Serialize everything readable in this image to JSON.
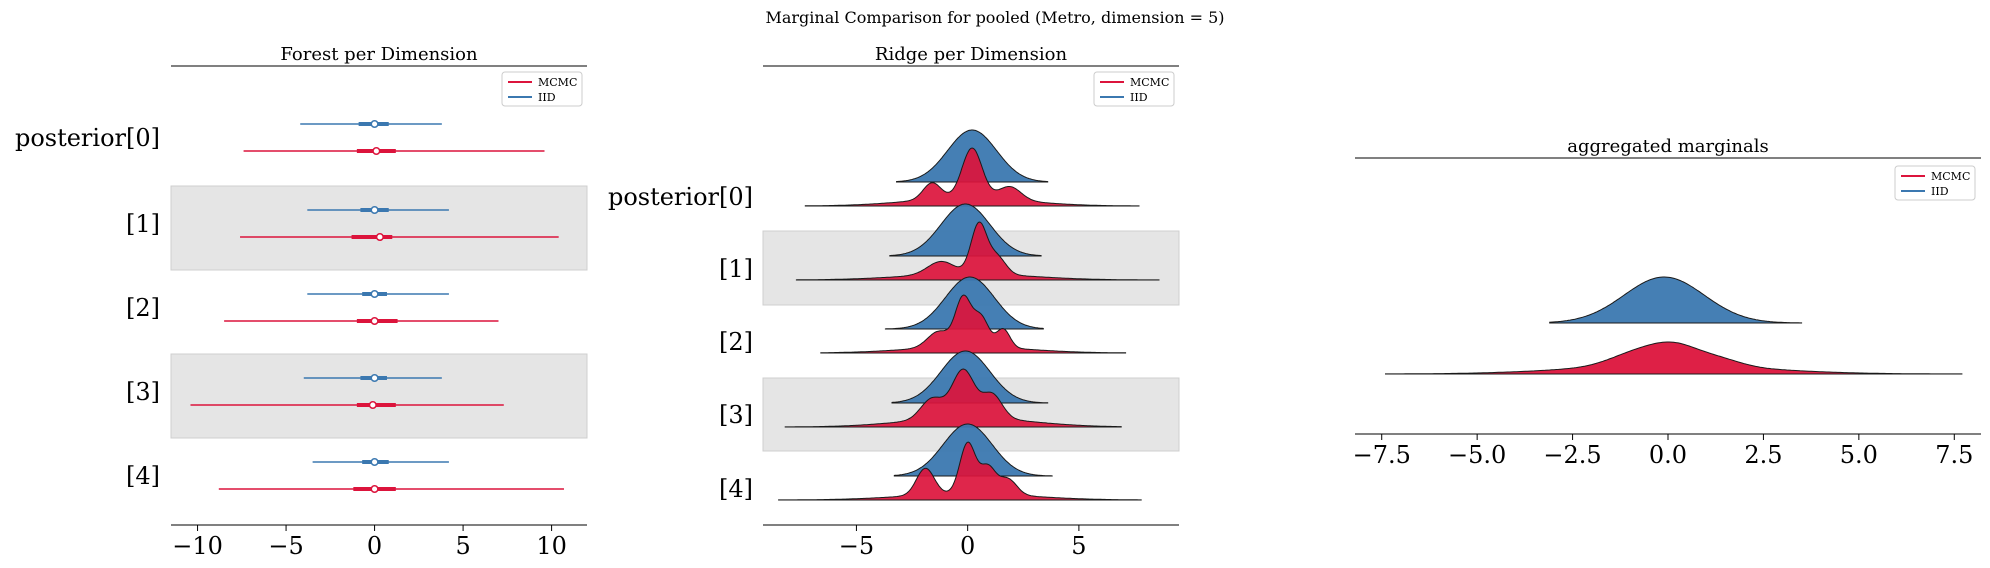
{
  "suptitle": "Marginal Comparison for pooled (Metro, dimension = 5)",
  "colors": {
    "mcmc": "#dc143c",
    "iid": "#3b78b0",
    "band": "#e5e5e5"
  },
  "chart_data": [
    {
      "type": "forest",
      "title": "Forest per Dimension",
      "xlim": [
        -11.5,
        12
      ],
      "xticks": [
        -10,
        -5,
        0,
        5,
        10
      ],
      "xtick_labels": [
        "−10",
        "−5",
        "0",
        "5",
        "10"
      ],
      "row_labels": [
        "posterior[0]",
        "[1]",
        "[2]",
        "[3]",
        "[4]"
      ],
      "legend": {
        "placement": "upper-right",
        "entries": [
          "MCMC",
          "IID"
        ]
      },
      "series": [
        {
          "name": "IID",
          "rows": [
            {
              "low": -4.2,
              "q1": -0.9,
              "median": 0.0,
              "q3": 0.8,
              "high": 3.8
            },
            {
              "low": -3.8,
              "q1": -0.8,
              "median": 0.0,
              "q3": 0.8,
              "high": 4.2
            },
            {
              "low": -3.8,
              "q1": -0.7,
              "median": 0.0,
              "q3": 0.7,
              "high": 4.2
            },
            {
              "low": -4.0,
              "q1": -0.8,
              "median": 0.0,
              "q3": 0.7,
              "high": 3.8
            },
            {
              "low": -3.5,
              "q1": -0.7,
              "median": 0.0,
              "q3": 0.8,
              "high": 4.2
            }
          ]
        },
        {
          "name": "MCMC",
          "rows": [
            {
              "low": -7.4,
              "q1": -1.0,
              "median": 0.1,
              "q3": 1.2,
              "high": 9.6
            },
            {
              "low": -7.6,
              "q1": -1.3,
              "median": 0.3,
              "q3": 1.0,
              "high": 10.4
            },
            {
              "low": -8.5,
              "q1": -1.0,
              "median": 0.0,
              "q3": 1.3,
              "high": 7.0
            },
            {
              "low": -10.4,
              "q1": -1.0,
              "median": -0.1,
              "q3": 1.2,
              "high": 7.3
            },
            {
              "low": -8.8,
              "q1": -1.2,
              "median": 0.0,
              "q3": 1.2,
              "high": 10.7
            }
          ]
        }
      ]
    },
    {
      "type": "ridgeline",
      "title": "Ridge per Dimension",
      "xlim": [
        -9.2,
        9.5
      ],
      "xticks": [
        -5,
        0,
        5
      ],
      "xtick_labels": [
        "−5",
        "0",
        "5"
      ],
      "row_labels": [
        "posterior[0]",
        "[1]",
        "[2]",
        "[3]",
        "[4]"
      ],
      "legend": {
        "placement": "upper-right",
        "entries": [
          "MCMC",
          "IID"
        ]
      },
      "series": [
        {
          "name": "IID",
          "rows": [
            {
              "min": -3.2,
              "max": 3.6,
              "peaks": [
                {
                  "mu": 0.2,
                  "sd": 1.1,
                  "h": 1.0
                }
              ]
            },
            {
              "min": -3.5,
              "max": 3.3,
              "peaks": [
                {
                  "mu": -0.1,
                  "sd": 1.1,
                  "h": 1.0
                }
              ]
            },
            {
              "min": -3.7,
              "max": 3.4,
              "peaks": [
                {
                  "mu": 0.1,
                  "sd": 1.1,
                  "h": 1.0
                }
              ]
            },
            {
              "min": -3.4,
              "max": 3.6,
              "peaks": [
                {
                  "mu": -0.1,
                  "sd": 1.1,
                  "h": 1.0
                }
              ]
            },
            {
              "min": -3.3,
              "max": 3.8,
              "peaks": [
                {
                  "mu": 0.0,
                  "sd": 1.1,
                  "h": 1.0
                }
              ]
            }
          ]
        },
        {
          "name": "MCMC",
          "rows": [
            {
              "min": -7.3,
              "max": 7.7,
              "peaks": [
                {
                  "mu": 0.2,
                  "sd": 0.45,
                  "h": 0.75
                },
                {
                  "mu": -1.6,
                  "sd": 0.4,
                  "h": 0.25
                },
                {
                  "mu": 1.9,
                  "sd": 0.5,
                  "h": 0.2
                },
                {
                  "mu": 0.0,
                  "sd": 2.6,
                  "h": 0.12
                }
              ]
            },
            {
              "min": -7.7,
              "max": 8.6,
              "peaks": [
                {
                  "mu": 0.5,
                  "sd": 0.35,
                  "h": 0.95
                },
                {
                  "mu": 1.3,
                  "sd": 0.4,
                  "h": 0.35
                },
                {
                  "mu": -1.2,
                  "sd": 0.6,
                  "h": 0.25
                },
                {
                  "mu": 0.0,
                  "sd": 2.8,
                  "h": 0.12
                }
              ]
            },
            {
              "min": -6.6,
              "max": 7.1,
              "peaks": [
                {
                  "mu": -0.2,
                  "sd": 0.35,
                  "h": 0.9
                },
                {
                  "mu": 0.6,
                  "sd": 0.35,
                  "h": 0.55
                },
                {
                  "mu": 1.6,
                  "sd": 0.3,
                  "h": 0.35
                },
                {
                  "mu": -1.3,
                  "sd": 0.5,
                  "h": 0.3
                },
                {
                  "mu": 0.0,
                  "sd": 2.6,
                  "h": 0.12
                }
              ]
            },
            {
              "min": -8.2,
              "max": 6.9,
              "peaks": [
                {
                  "mu": -0.2,
                  "sd": 0.5,
                  "h": 0.7
                },
                {
                  "mu": 1.1,
                  "sd": 0.45,
                  "h": 0.35
                },
                {
                  "mu": -1.6,
                  "sd": 0.5,
                  "h": 0.3
                },
                {
                  "mu": 0.0,
                  "sd": 2.7,
                  "h": 0.14
                }
              ]
            },
            {
              "min": -8.5,
              "max": 7.8,
              "peaks": [
                {
                  "mu": 0.0,
                  "sd": 0.35,
                  "h": 0.95
                },
                {
                  "mu": -1.9,
                  "sd": 0.4,
                  "h": 0.5
                },
                {
                  "mu": 0.9,
                  "sd": 0.35,
                  "h": 0.5
                },
                {
                  "mu": 1.8,
                  "sd": 0.4,
                  "h": 0.3
                },
                {
                  "mu": 0.0,
                  "sd": 2.8,
                  "h": 0.12
                }
              ]
            }
          ]
        }
      ]
    },
    {
      "type": "ridgeline",
      "title": "aggregated marginals",
      "xlim": [
        -8.2,
        8.2
      ],
      "xticks": [
        -7.5,
        -5.0,
        -2.5,
        0.0,
        2.5,
        5.0,
        7.5
      ],
      "xtick_labels": [
        "−7.5",
        "−5.0",
        "−2.5",
        "0.0",
        "2.5",
        "5.0",
        "7.5"
      ],
      "legend": {
        "placement": "upper-right",
        "entries": [
          "MCMC",
          "IID"
        ]
      },
      "series": [
        {
          "name": "IID",
          "min": -3.1,
          "max": 3.5,
          "peaks": [
            {
              "mu": -0.1,
              "sd": 1.05,
              "h": 1.0
            }
          ]
        },
        {
          "name": "MCMC",
          "min": -7.4,
          "max": 7.7,
          "peaks": [
            {
              "mu": 0.2,
              "sd": 0.6,
              "h": 0.45
            },
            {
              "mu": -0.8,
              "sd": 0.7,
              "h": 0.35
            },
            {
              "mu": 1.3,
              "sd": 0.6,
              "h": 0.2
            },
            {
              "mu": 0.0,
              "sd": 2.4,
              "h": 0.25
            }
          ]
        }
      ]
    }
  ]
}
